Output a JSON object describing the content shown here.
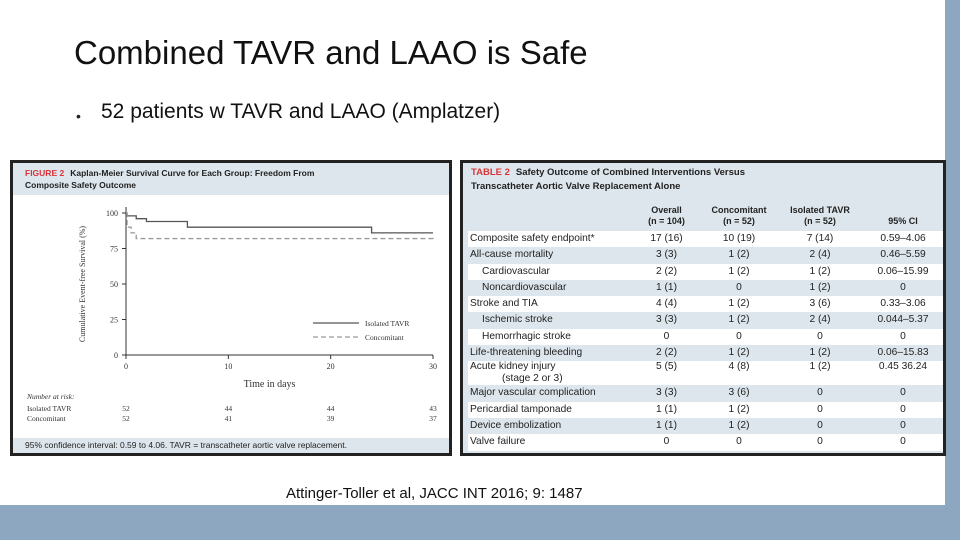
{
  "slide": {
    "title": "Combined TAVR and LAAO is Safe",
    "bullet_dot": "•",
    "bullet": "52 patients w TAVR and LAAO (Amplatzer)",
    "citation": "Attinger-Toller et al, JACC INT 2016; 9: 1487"
  },
  "figure": {
    "label": "FIGURE 2",
    "title_line1": "Kaplan-Meier Survival Curve for Each Group: Freedom From",
    "title_line2": "Composite Safety Outcome",
    "footer": "95% confidence interval: 0.59 to 4.06. TAVR = transcatheter aortic valve replacement."
  },
  "chart_data": [
    {
      "type": "line",
      "title": "Kaplan-Meier Survival Curve for Each Group: Freedom From Composite Safety Outcome",
      "xlabel": "Time in days",
      "ylabel": "Cumulative Event-free Survival (%)",
      "xlim": [
        0,
        30
      ],
      "ylim": [
        0,
        100
      ],
      "xticks": [
        0,
        10,
        20,
        30
      ],
      "yticks": [
        0,
        25,
        50,
        75,
        100
      ],
      "series": [
        {
          "name": "Isolated TAVR",
          "style": "solid",
          "color": "#555555",
          "x": [
            0,
            0.1,
            1,
            2,
            6,
            24,
            30
          ],
          "y": [
            100,
            98,
            96,
            94,
            90,
            86,
            86
          ]
        },
        {
          "name": "Concomitant",
          "style": "dashed",
          "color": "#9a9a9a",
          "x": [
            0,
            0.1,
            0.5,
            1,
            30
          ],
          "y": [
            100,
            90,
            86,
            82,
            81
          ]
        }
      ],
      "legend_position": "bottom-right",
      "risk_table": {
        "header": "Number at risk:",
        "rows": [
          {
            "label": "Isolated TAVR",
            "values": [
              52,
              44,
              44,
              43
            ]
          },
          {
            "label": "Concomitant",
            "values": [
              52,
              41,
              39,
              37
            ]
          }
        ]
      }
    },
    {
      "type": "table",
      "label": "TABLE 2",
      "title_line1": "Safety Outcome of Combined Interventions Versus",
      "title_line2": "Transcatheter Aortic Valve Replacement Alone",
      "columns": [
        {
          "line1": "Overall",
          "line2": "(n = 104)"
        },
        {
          "line1": "Concomitant",
          "line2": "(n = 52)"
        },
        {
          "line1": "Isolated TAVR",
          "line2": "(n = 52)"
        },
        {
          "line1": "",
          "line2": "95% CI"
        }
      ],
      "rows": [
        {
          "label": "Composite safety endpoint*",
          "indent": false,
          "cells": [
            "17 (16)",
            "10 (19)",
            "7 (14)",
            "0.59–4.06"
          ]
        },
        {
          "label": "All-cause mortality",
          "indent": false,
          "cells": [
            "3 (3)",
            "1 (2)",
            "2 (4)",
            "0.46–5.59"
          ]
        },
        {
          "label": "Cardiovascular",
          "indent": true,
          "cells": [
            "2 (2)",
            "1 (2)",
            "1 (2)",
            "0.06–15.99"
          ]
        },
        {
          "label": "Noncardiovascular",
          "indent": true,
          "cells": [
            "1 (1)",
            "0",
            "1 (2)",
            "0"
          ]
        },
        {
          "label": "Stroke and TIA",
          "indent": false,
          "cells": [
            "4 (4)",
            "1 (2)",
            "3 (6)",
            "0.33–3.06"
          ]
        },
        {
          "label": "Ischemic stroke",
          "indent": true,
          "cells": [
            "3 (3)",
            "1 (2)",
            "2 (4)",
            "0.044–5.37"
          ]
        },
        {
          "label": "Hemorrhagic stroke",
          "indent": true,
          "cells": [
            "0",
            "0",
            "0",
            "0"
          ]
        },
        {
          "label": "Life-threatening bleeding",
          "indent": false,
          "cells": [
            "2 (2)",
            "1 (2)",
            "1 (2)",
            "0.06–15.83"
          ]
        },
        {
          "label": "Acute kidney injury",
          "label2": "(stage 2 or 3)",
          "indent": false,
          "cells": [
            "5 (5)",
            "4 (8)",
            "1 (2)",
            "0.45 36.24"
          ]
        },
        {
          "label": "Major vascular complication",
          "indent": false,
          "cells": [
            "3 (3)",
            "3 (6)",
            "0",
            "0"
          ]
        },
        {
          "label": "Pericardial tamponade",
          "indent": false,
          "cells": [
            "1 (1)",
            "1 (2)",
            "0",
            "0"
          ]
        },
        {
          "label": "Device embolization",
          "indent": false,
          "cells": [
            "1 (1)",
            "1 (2)",
            "0",
            "0"
          ]
        },
        {
          "label": "Valve failure",
          "indent": false,
          "cells": [
            "0",
            "0",
            "0",
            "0"
          ]
        }
      ]
    }
  ],
  "colors": {
    "frame_blue": "#8ea7c1",
    "panel_tint": "#dde6ec",
    "label_red": "#d8353b"
  }
}
